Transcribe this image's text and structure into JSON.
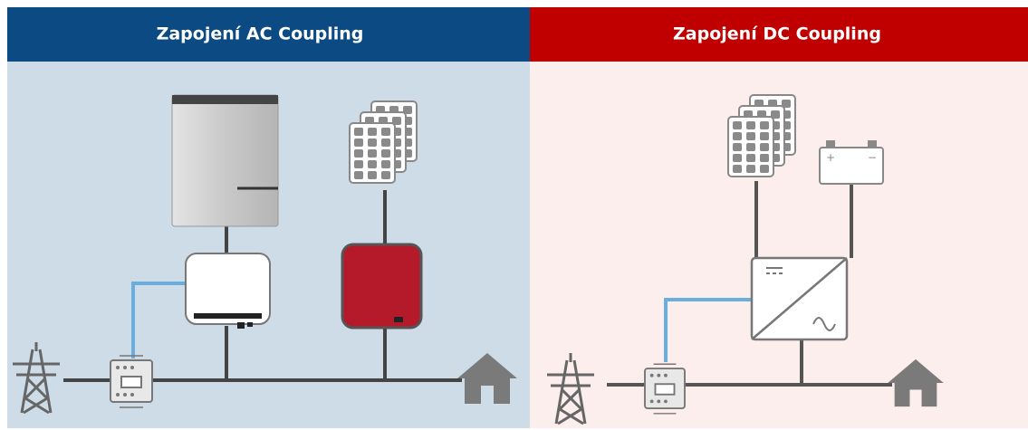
{
  "panels": [
    {
      "title": "Zapojení AC Coupling"
    },
    {
      "title": "Zapojení DC Coupling"
    }
  ]
}
